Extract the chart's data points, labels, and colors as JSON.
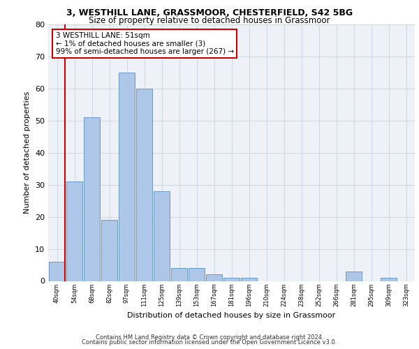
{
  "title_line1": "3, WESTHILL LANE, GRASSMOOR, CHESTERFIELD, S42 5BG",
  "title_line2": "Size of property relative to detached houses in Grassmoor",
  "xlabel": "Distribution of detached houses by size in Grassmoor",
  "ylabel": "Number of detached properties",
  "categories": [
    "40sqm",
    "54sqm",
    "68sqm",
    "82sqm",
    "97sqm",
    "111sqm",
    "125sqm",
    "139sqm",
    "153sqm",
    "167sqm",
    "181sqm",
    "196sqm",
    "210sqm",
    "224sqm",
    "238sqm",
    "252sqm",
    "266sqm",
    "281sqm",
    "295sqm",
    "309sqm",
    "323sqm"
  ],
  "values": [
    6,
    31,
    51,
    19,
    65,
    60,
    28,
    4,
    4,
    2,
    1,
    1,
    0,
    0,
    0,
    0,
    0,
    3,
    0,
    1,
    0
  ],
  "bar_color": "#aec6e8",
  "bar_edge_color": "#5a8fc2",
  "highlight_line_color": "#cc0000",
  "annotation_text": "3 WESTHILL LANE: 51sqm\n← 1% of detached houses are smaller (3)\n99% of semi-detached houses are larger (267) →",
  "annotation_box_color": "#ffffff",
  "annotation_box_edge_color": "#cc0000",
  "ylim": [
    0,
    80
  ],
  "yticks": [
    0,
    10,
    20,
    30,
    40,
    50,
    60,
    70,
    80
  ],
  "grid_color": "#d0d8e8",
  "bg_color": "#eef2f8",
  "footer_line1": "Contains HM Land Registry data © Crown copyright and database right 2024.",
  "footer_line2": "Contains public sector information licensed under the Open Government Licence v3.0."
}
